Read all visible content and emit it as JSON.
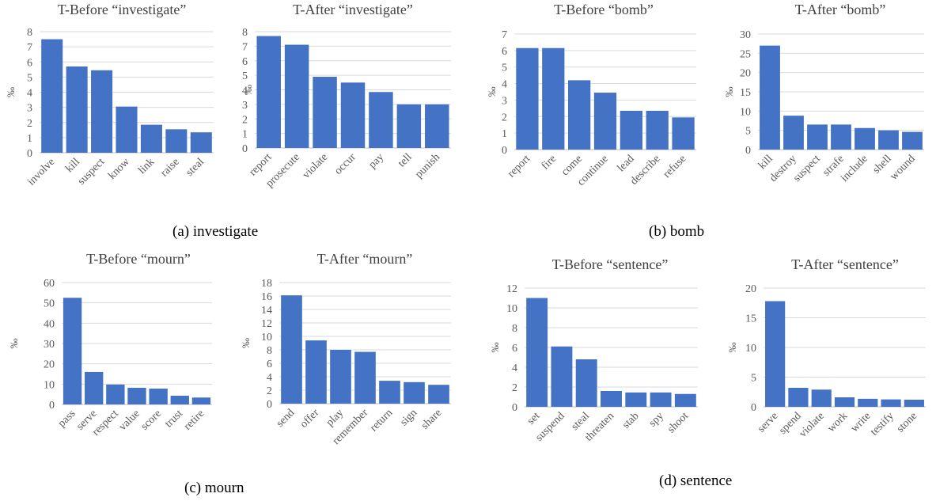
{
  "colors": {
    "bar": "#4472c4",
    "grid": "#d9d9d9",
    "text": "#595959"
  },
  "captions": [
    "(a) investigate",
    "(b) bomb",
    "(c) mourn",
    "(d) sentence"
  ],
  "chart_data": [
    {
      "type": "bar",
      "title": "T-Before “investigate”",
      "ylabel": "‰",
      "categories": [
        "involve",
        "kill",
        "suspect",
        "know",
        "link",
        "raise",
        "steal"
      ],
      "values": [
        7.5,
        5.7,
        5.45,
        3.05,
        1.85,
        1.55,
        1.35
      ],
      "ylim": [
        0,
        8
      ],
      "ytick_step": 1,
      "grid": true
    },
    {
      "type": "bar",
      "title": "T-After “investigate”",
      "ylabel": "‰",
      "categories": [
        "report",
        "prosecute",
        "violate",
        "occur",
        "pay",
        "tell",
        "punish"
      ],
      "values": [
        7.7,
        7.1,
        4.9,
        4.5,
        3.85,
        3.0,
        3.0
      ],
      "ylim": [
        0,
        8
      ],
      "ytick_step": 1,
      "grid": true
    },
    {
      "type": "bar",
      "title": "T-Before “bomb”",
      "ylabel": "‰",
      "categories": [
        "report",
        "fire",
        "come",
        "continue",
        "lead",
        "describe",
        "refuse"
      ],
      "values": [
        6.15,
        6.15,
        4.2,
        3.45,
        2.35,
        2.35,
        1.95
      ],
      "ylim": [
        0,
        7
      ],
      "ytick_step": 1,
      "grid": true
    },
    {
      "type": "bar",
      "title": "T-After “bomb”",
      "ylabel": "‰",
      "categories": [
        "kill",
        "destroy",
        "suspect",
        "strafe",
        "include",
        "shell",
        "wound"
      ],
      "values": [
        27,
        8.8,
        6.5,
        6.5,
        5.6,
        5.0,
        4.6
      ],
      "ylim": [
        0,
        30
      ],
      "ytick_step": 5,
      "grid": true
    },
    {
      "type": "bar",
      "title": "T-Before “mourn”",
      "ylabel": "‰",
      "categories": [
        "pass",
        "serve",
        "respect",
        "value",
        "score",
        "trust",
        "retire"
      ],
      "values": [
        52.5,
        16,
        9.8,
        8.2,
        7.8,
        4.3,
        3.4
      ],
      "ylim": [
        0,
        60
      ],
      "ytick_step": 10,
      "grid": true
    },
    {
      "type": "bar",
      "title": "T-After “mourn”",
      "ylabel": "‰",
      "categories": [
        "send",
        "offer",
        "play",
        "remember",
        "return",
        "sign",
        "share"
      ],
      "values": [
        16.1,
        9.4,
        8.0,
        7.7,
        3.4,
        3.2,
        2.8
      ],
      "ylim": [
        0,
        18
      ],
      "ytick_step": 2,
      "grid": true
    },
    {
      "type": "bar",
      "title": "T-Before “sentence”",
      "ylabel": "‰",
      "categories": [
        "set",
        "suspend",
        "steal",
        "threaten",
        "stab",
        "spy",
        "shoot"
      ],
      "values": [
        11.0,
        6.1,
        4.8,
        1.6,
        1.45,
        1.45,
        1.3
      ],
      "ylim": [
        0,
        12
      ],
      "ytick_step": 2,
      "grid": true
    },
    {
      "type": "bar",
      "title": "T-After “sentence”",
      "ylabel": "‰",
      "categories": [
        "serve",
        "spend",
        "violate",
        "work",
        "write",
        "testify",
        "stone"
      ],
      "values": [
        17.8,
        3.2,
        2.9,
        1.6,
        1.35,
        1.25,
        1.2
      ],
      "ylim": [
        0,
        20
      ],
      "ytick_step": 5,
      "grid": true
    }
  ]
}
